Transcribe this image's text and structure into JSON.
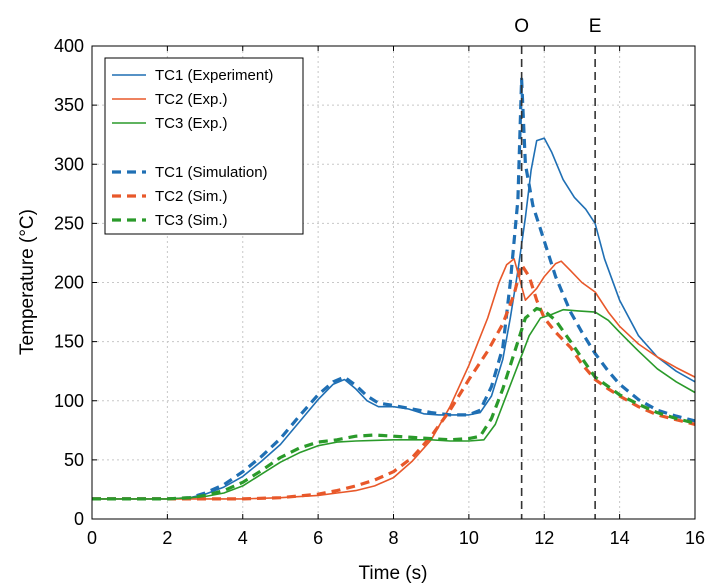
{
  "chart_data": {
    "type": "line",
    "xlabel": "Time (s)",
    "ylabel": "Temperature (°C)",
    "xlim": [
      0,
      16
    ],
    "ylim": [
      0,
      400
    ],
    "xticks": [
      0,
      2,
      4,
      6,
      8,
      10,
      12,
      14,
      16
    ],
    "yticks": [
      0,
      50,
      100,
      150,
      200,
      250,
      300,
      350,
      400
    ],
    "grid": true,
    "legend_position": "top-left",
    "vertical_markers": [
      {
        "label": "O",
        "x": 11.4
      },
      {
        "label": "E",
        "x": 13.35
      }
    ],
    "series": [
      {
        "name": "TC1 (Experiment)",
        "color": "#1f6fb4",
        "dashed": false,
        "points": [
          [
            0,
            17
          ],
          [
            2,
            17
          ],
          [
            2.6,
            18
          ],
          [
            3,
            21
          ],
          [
            3.5,
            27
          ],
          [
            4,
            36
          ],
          [
            4.5,
            49
          ],
          [
            5,
            63
          ],
          [
            5.5,
            82
          ],
          [
            6,
            101
          ],
          [
            6.4,
            114
          ],
          [
            6.7,
            118
          ],
          [
            7,
            110
          ],
          [
            7.3,
            100
          ],
          [
            7.6,
            95
          ],
          [
            8,
            95
          ],
          [
            8.4,
            93
          ],
          [
            8.8,
            89
          ],
          [
            9.2,
            88
          ],
          [
            9.6,
            88
          ],
          [
            10,
            88
          ],
          [
            10.3,
            90
          ],
          [
            10.6,
            104
          ],
          [
            10.9,
            135
          ],
          [
            11.1,
            170
          ],
          [
            11.3,
            210
          ],
          [
            11.5,
            255
          ],
          [
            11.65,
            295
          ],
          [
            11.8,
            320
          ],
          [
            12,
            322
          ],
          [
            12.2,
            310
          ],
          [
            12.5,
            287
          ],
          [
            12.8,
            272
          ],
          [
            13.1,
            262
          ],
          [
            13.35,
            250
          ],
          [
            13.6,
            220
          ],
          [
            14,
            185
          ],
          [
            14.5,
            155
          ],
          [
            15,
            137
          ],
          [
            15.5,
            125
          ],
          [
            16,
            116
          ]
        ]
      },
      {
        "name": "TC2 (Exp.)",
        "color": "#e8582a",
        "dashed": false,
        "points": [
          [
            0,
            17
          ],
          [
            4,
            17
          ],
          [
            5,
            18
          ],
          [
            6,
            20
          ],
          [
            6.5,
            22
          ],
          [
            7,
            24
          ],
          [
            7.5,
            28
          ],
          [
            8,
            35
          ],
          [
            8.5,
            49
          ],
          [
            9,
            67
          ],
          [
            9.5,
            95
          ],
          [
            10,
            130
          ],
          [
            10.5,
            170
          ],
          [
            10.8,
            200
          ],
          [
            11,
            215
          ],
          [
            11.2,
            220
          ],
          [
            11.5,
            185
          ],
          [
            11.8,
            195
          ],
          [
            12,
            205
          ],
          [
            12.3,
            216
          ],
          [
            12.45,
            218
          ],
          [
            12.7,
            210
          ],
          [
            13,
            200
          ],
          [
            13.35,
            192
          ],
          [
            13.7,
            175
          ],
          [
            14,
            163
          ],
          [
            14.5,
            148
          ],
          [
            15,
            137
          ],
          [
            15.5,
            128
          ],
          [
            16,
            120
          ]
        ]
      },
      {
        "name": "TC3 (Exp.)",
        "color": "#2a9a2a",
        "dashed": false,
        "points": [
          [
            0,
            17
          ],
          [
            2,
            17
          ],
          [
            2.6,
            18
          ],
          [
            3,
            19
          ],
          [
            3.5,
            22
          ],
          [
            4,
            28
          ],
          [
            4.5,
            38
          ],
          [
            5,
            48
          ],
          [
            5.5,
            56
          ],
          [
            6,
            62
          ],
          [
            6.5,
            65
          ],
          [
            7,
            66
          ],
          [
            8,
            67
          ],
          [
            9,
            67
          ],
          [
            9.5,
            66
          ],
          [
            10,
            66
          ],
          [
            10.4,
            67
          ],
          [
            10.7,
            80
          ],
          [
            11,
            105
          ],
          [
            11.3,
            130
          ],
          [
            11.6,
            155
          ],
          [
            11.9,
            170
          ],
          [
            12.2,
            173
          ],
          [
            12.5,
            177
          ],
          [
            12.9,
            176
          ],
          [
            13.35,
            175
          ],
          [
            13.7,
            168
          ],
          [
            14,
            158
          ],
          [
            14.5,
            142
          ],
          [
            15,
            127
          ],
          [
            15.5,
            116
          ],
          [
            16,
            107
          ]
        ]
      },
      {
        "name": "TC1 (Simulation)",
        "color": "#1f6fb4",
        "dashed": true,
        "points": [
          [
            0,
            17
          ],
          [
            2,
            17
          ],
          [
            2.6,
            18
          ],
          [
            3,
            22
          ],
          [
            3.5,
            29
          ],
          [
            4,
            40
          ],
          [
            4.5,
            53
          ],
          [
            5,
            68
          ],
          [
            5.5,
            87
          ],
          [
            6,
            105
          ],
          [
            6.4,
            116
          ],
          [
            6.7,
            120
          ],
          [
            7,
            113
          ],
          [
            7.3,
            104
          ],
          [
            7.6,
            98
          ],
          [
            8,
            96
          ],
          [
            8.5,
            93
          ],
          [
            9,
            90
          ],
          [
            9.5,
            88
          ],
          [
            10,
            88
          ],
          [
            10.3,
            92
          ],
          [
            10.6,
            112
          ],
          [
            10.9,
            145
          ],
          [
            11.1,
            200
          ],
          [
            11.3,
            270
          ],
          [
            11.4,
            372
          ],
          [
            11.5,
            300
          ],
          [
            11.7,
            265
          ],
          [
            12,
            235
          ],
          [
            12.3,
            205
          ],
          [
            12.7,
            175
          ],
          [
            13,
            158
          ],
          [
            13.35,
            140
          ],
          [
            13.7,
            125
          ],
          [
            14,
            114
          ],
          [
            14.5,
            101
          ],
          [
            15,
            92
          ],
          [
            15.5,
            87
          ],
          [
            16,
            83
          ]
        ]
      },
      {
        "name": "TC2 (Sim.)",
        "color": "#e8582a",
        "dashed": true,
        "points": [
          [
            0,
            17
          ],
          [
            4,
            17
          ],
          [
            5,
            18
          ],
          [
            6,
            21
          ],
          [
            6.5,
            24
          ],
          [
            7,
            28
          ],
          [
            7.5,
            33
          ],
          [
            8,
            40
          ],
          [
            8.5,
            52
          ],
          [
            9,
            70
          ],
          [
            9.5,
            92
          ],
          [
            10,
            118
          ],
          [
            10.5,
            142
          ],
          [
            10.9,
            165
          ],
          [
            11.2,
            190
          ],
          [
            11.4,
            215
          ],
          [
            11.6,
            205
          ],
          [
            11.8,
            185
          ],
          [
            12,
            170
          ],
          [
            12.3,
            158
          ],
          [
            12.7,
            145
          ],
          [
            13,
            131
          ],
          [
            13.35,
            118
          ],
          [
            13.7,
            110
          ],
          [
            14,
            104
          ],
          [
            14.5,
            95
          ],
          [
            15,
            88
          ],
          [
            15.5,
            84
          ],
          [
            16,
            80
          ]
        ]
      },
      {
        "name": "TC3 (Sim.)",
        "color": "#2a9a2a",
        "dashed": true,
        "points": [
          [
            0,
            17
          ],
          [
            2,
            17
          ],
          [
            2.6,
            18
          ],
          [
            3,
            20
          ],
          [
            3.5,
            24
          ],
          [
            4,
            31
          ],
          [
            4.5,
            41
          ],
          [
            5,
            52
          ],
          [
            5.5,
            60
          ],
          [
            6,
            65
          ],
          [
            6.5,
            67
          ],
          [
            7,
            70
          ],
          [
            7.5,
            71
          ],
          [
            8,
            70
          ],
          [
            8.5,
            69
          ],
          [
            9,
            68
          ],
          [
            9.5,
            67
          ],
          [
            10,
            68
          ],
          [
            10.3,
            70
          ],
          [
            10.6,
            85
          ],
          [
            10.9,
            110
          ],
          [
            11.2,
            140
          ],
          [
            11.5,
            170
          ],
          [
            11.8,
            178
          ],
          [
            12,
            176
          ],
          [
            12.3,
            168
          ],
          [
            12.7,
            150
          ],
          [
            13,
            136
          ],
          [
            13.35,
            120
          ],
          [
            13.7,
            112
          ],
          [
            14,
            105
          ],
          [
            14.5,
            97
          ],
          [
            15,
            90
          ],
          [
            15.5,
            85
          ],
          [
            16,
            81
          ]
        ]
      }
    ]
  }
}
